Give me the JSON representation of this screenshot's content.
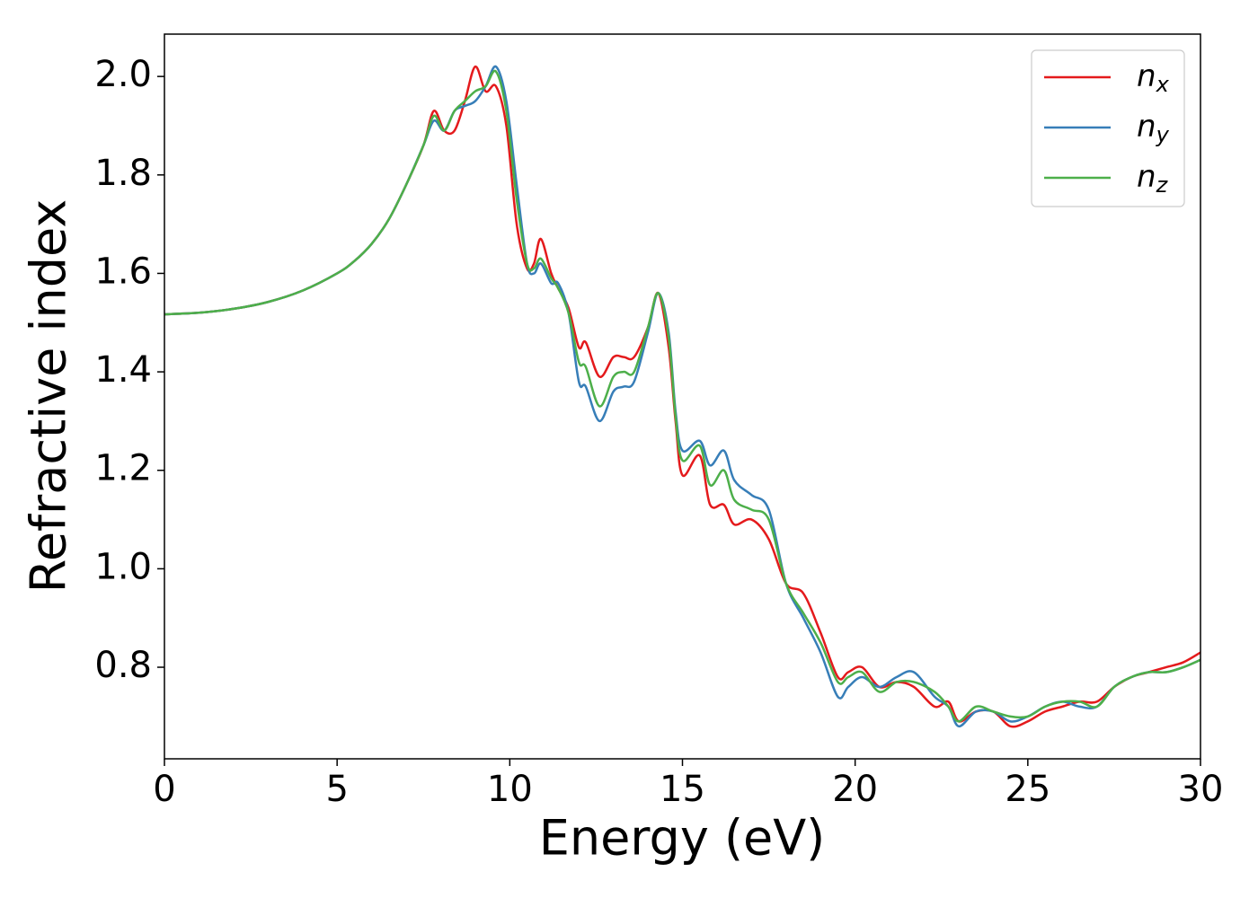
{
  "chart_data": {
    "type": "line",
    "xlabel": "Energy (eV)",
    "ylabel": "Refractive index",
    "x": [
      0,
      1,
      2,
      3,
      4,
      5,
      5.5,
      6,
      6.5,
      7,
      7.5,
      7.8,
      8.1,
      8.4,
      8.7,
      9.0,
      9.3,
      9.6,
      9.9,
      10.2,
      10.5,
      10.7,
      10.9,
      11.2,
      11.4,
      11.7,
      12.0,
      12.2,
      12.6,
      13.0,
      13.3,
      13.6,
      14.0,
      14.3,
      14.6,
      14.8,
      15.0,
      15.5,
      15.8,
      16.2,
      16.5,
      17.0,
      17.5,
      18.0,
      18.5,
      19.0,
      19.5,
      19.8,
      20.2,
      20.7,
      21.2,
      21.7,
      22.3,
      22.7,
      23.0,
      23.5,
      24.0,
      24.5,
      25.0,
      25.5,
      26.0,
      26.5,
      27.0,
      27.5,
      28.0,
      28.5,
      29.0,
      29.5,
      30.0
    ],
    "series": [
      {
        "name": "nx",
        "color": "#e41a1c",
        "values": [
          1.517,
          1.52,
          1.528,
          1.542,
          1.565,
          1.6,
          1.625,
          1.66,
          1.71,
          1.78,
          1.86,
          1.93,
          1.89,
          1.89,
          1.95,
          2.02,
          1.97,
          1.98,
          1.9,
          1.7,
          1.61,
          1.62,
          1.67,
          1.6,
          1.57,
          1.53,
          1.45,
          1.46,
          1.39,
          1.43,
          1.43,
          1.43,
          1.49,
          1.56,
          1.45,
          1.3,
          1.19,
          1.23,
          1.13,
          1.13,
          1.09,
          1.1,
          1.06,
          0.97,
          0.95,
          0.87,
          0.78,
          0.79,
          0.8,
          0.76,
          0.77,
          0.76,
          0.72,
          0.73,
          0.69,
          0.71,
          0.71,
          0.68,
          0.69,
          0.71,
          0.72,
          0.73,
          0.73,
          0.76,
          0.78,
          0.79,
          0.8,
          0.81,
          0.83
        ]
      },
      {
        "name": "ny",
        "color": "#377eb8",
        "values": [
          1.517,
          1.52,
          1.528,
          1.542,
          1.565,
          1.6,
          1.625,
          1.66,
          1.71,
          1.78,
          1.86,
          1.91,
          1.89,
          1.93,
          1.94,
          1.95,
          1.98,
          2.02,
          1.95,
          1.78,
          1.62,
          1.6,
          1.62,
          1.58,
          1.58,
          1.52,
          1.38,
          1.37,
          1.3,
          1.36,
          1.37,
          1.38,
          1.48,
          1.56,
          1.48,
          1.32,
          1.24,
          1.26,
          1.21,
          1.24,
          1.18,
          1.15,
          1.12,
          0.97,
          0.9,
          0.83,
          0.74,
          0.76,
          0.78,
          0.76,
          0.78,
          0.79,
          0.74,
          0.72,
          0.68,
          0.71,
          0.71,
          0.69,
          0.7,
          0.72,
          0.73,
          0.72,
          0.72,
          0.76,
          0.78,
          0.79,
          0.79,
          0.8,
          0.815
        ]
      },
      {
        "name": "nz",
        "color": "#4daf4a",
        "values": [
          1.517,
          1.52,
          1.528,
          1.542,
          1.565,
          1.6,
          1.625,
          1.66,
          1.71,
          1.78,
          1.86,
          1.92,
          1.89,
          1.93,
          1.95,
          1.97,
          1.98,
          2.01,
          1.93,
          1.75,
          1.62,
          1.61,
          1.63,
          1.59,
          1.57,
          1.52,
          1.42,
          1.41,
          1.33,
          1.39,
          1.4,
          1.4,
          1.49,
          1.56,
          1.47,
          1.31,
          1.22,
          1.25,
          1.17,
          1.2,
          1.14,
          1.12,
          1.1,
          0.97,
          0.91,
          0.85,
          0.77,
          0.78,
          0.79,
          0.75,
          0.77,
          0.77,
          0.75,
          0.72,
          0.69,
          0.72,
          0.71,
          0.7,
          0.7,
          0.72,
          0.73,
          0.73,
          0.72,
          0.76,
          0.78,
          0.79,
          0.79,
          0.8,
          0.815
        ]
      }
    ],
    "xlim": [
      0,
      30
    ],
    "xticks": [
      0,
      5,
      10,
      15,
      20,
      25,
      30
    ],
    "ylim": [
      0.614,
      2.086
    ],
    "yticks": [
      0.8,
      {
        "value": 1.0,
        "label": "1.0"
      },
      1.2,
      1.4,
      1.6,
      1.8,
      {
        "value": 2.0,
        "label": "2.0"
      }
    ],
    "legend": "upper right",
    "grid": false
  }
}
